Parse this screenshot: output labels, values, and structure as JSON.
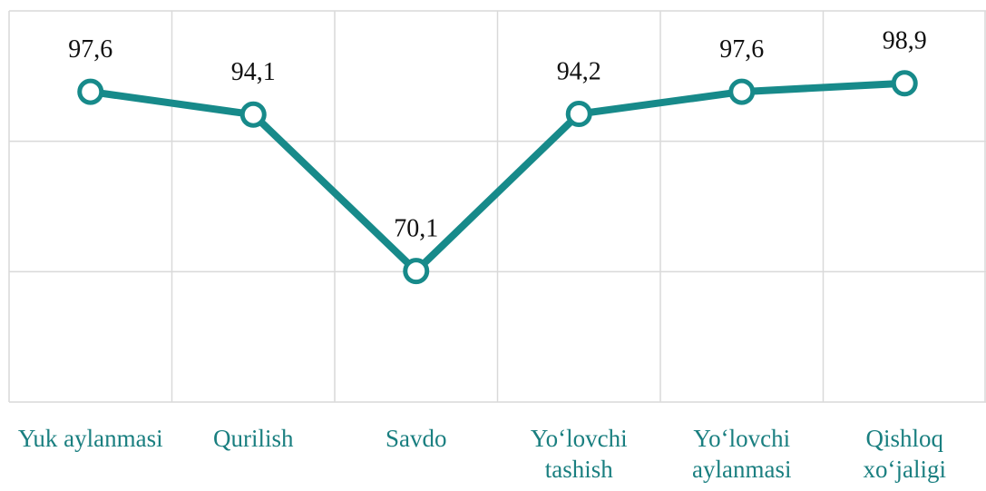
{
  "chart_data": {
    "type": "line",
    "categories": [
      "Yuk aylanmasi",
      "Qurilish",
      "Savdo",
      "Yo‘lovchi tashish",
      "Yo‘lovchi aylanmasi",
      "Qishloq xo‘jaligi"
    ],
    "values": [
      97.6,
      94.1,
      70.1,
      94.2,
      97.6,
      98.9
    ],
    "value_labels": [
      "97,6",
      "94,1",
      "70,1",
      "94,2",
      "97,6",
      "98,9"
    ],
    "color": "#178a8a",
    "ylim": [
      50,
      110
    ],
    "yticks": [
      50,
      70,
      90,
      110
    ],
    "grid": true
  }
}
